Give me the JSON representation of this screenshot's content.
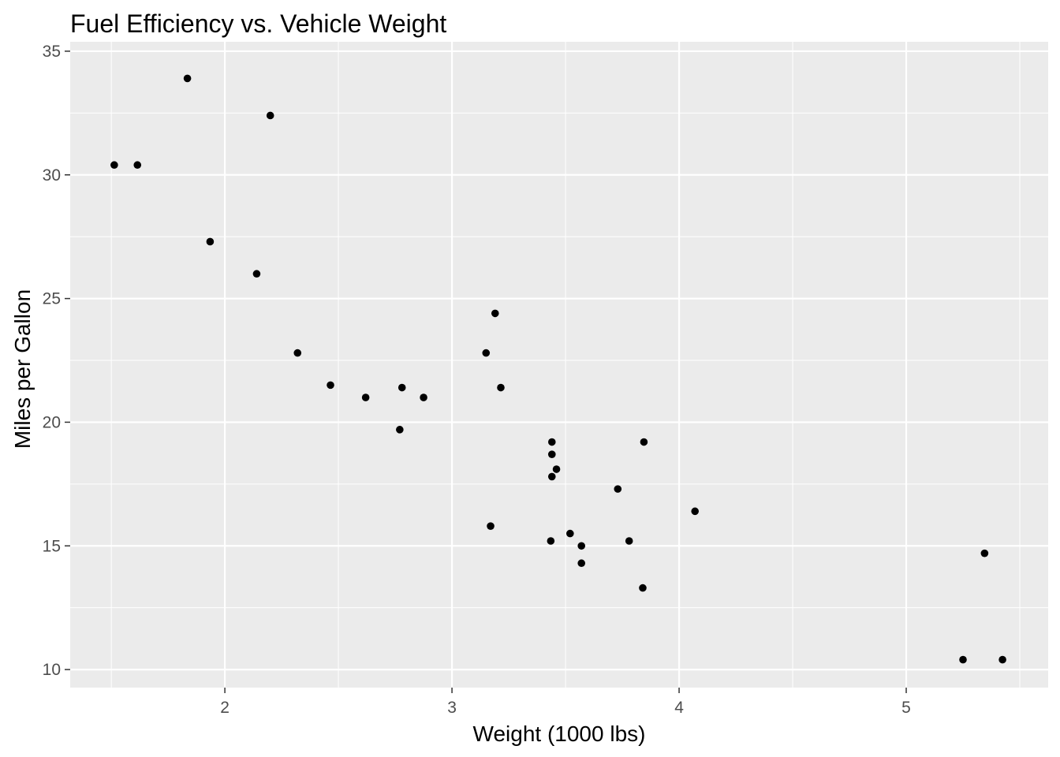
{
  "chart_data": {
    "type": "scatter",
    "title": "Fuel Efficiency vs. Vehicle Weight",
    "xlabel": "Weight (1000 lbs)",
    "ylabel": "Miles per Gallon",
    "xlim": [
      1.319,
      5.625
    ],
    "ylim": [
      9.27,
      35.38
    ],
    "xticks": [
      2,
      3,
      4,
      5
    ],
    "yticks": [
      10,
      15,
      20,
      25,
      30,
      35
    ],
    "xminor": [
      1.5,
      2.5,
      3.5,
      4.5,
      5.5
    ],
    "yminor": [
      12.5,
      17.5,
      22.5,
      27.5,
      32.5
    ],
    "grid": true,
    "colors": {
      "panel": "#EBEBEB",
      "grid": "#FFFFFF",
      "point": "#000000",
      "tick_text": "#4D4D4D"
    },
    "points": [
      {
        "x": 2.62,
        "y": 21.0
      },
      {
        "x": 2.875,
        "y": 21.0
      },
      {
        "x": 2.32,
        "y": 22.8
      },
      {
        "x": 3.215,
        "y": 21.4
      },
      {
        "x": 3.44,
        "y": 18.7
      },
      {
        "x": 3.46,
        "y": 18.1
      },
      {
        "x": 3.57,
        "y": 14.3
      },
      {
        "x": 3.19,
        "y": 24.4
      },
      {
        "x": 3.15,
        "y": 22.8
      },
      {
        "x": 3.44,
        "y": 19.2
      },
      {
        "x": 3.44,
        "y": 17.8
      },
      {
        "x": 4.07,
        "y": 16.4
      },
      {
        "x": 3.73,
        "y": 17.3
      },
      {
        "x": 3.78,
        "y": 15.2
      },
      {
        "x": 5.25,
        "y": 10.4
      },
      {
        "x": 5.424,
        "y": 10.4
      },
      {
        "x": 5.345,
        "y": 14.7
      },
      {
        "x": 2.2,
        "y": 32.4
      },
      {
        "x": 1.615,
        "y": 30.4
      },
      {
        "x": 1.835,
        "y": 33.9
      },
      {
        "x": 2.465,
        "y": 21.5
      },
      {
        "x": 3.52,
        "y": 15.5
      },
      {
        "x": 3.435,
        "y": 15.2
      },
      {
        "x": 3.84,
        "y": 13.3
      },
      {
        "x": 3.845,
        "y": 19.2
      },
      {
        "x": 1.935,
        "y": 27.3
      },
      {
        "x": 2.14,
        "y": 26.0
      },
      {
        "x": 1.513,
        "y": 30.4
      },
      {
        "x": 3.17,
        "y": 15.8
      },
      {
        "x": 2.77,
        "y": 19.7
      },
      {
        "x": 3.57,
        "y": 15.0
      },
      {
        "x": 2.78,
        "y": 21.4
      }
    ]
  }
}
